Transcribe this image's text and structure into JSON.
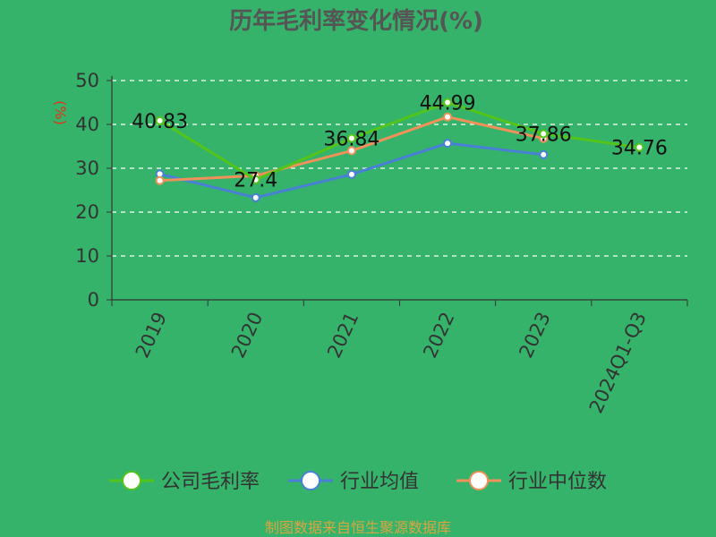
{
  "chart_data": {
    "type": "line",
    "title": "历年毛利率变化情况(%)",
    "ylabel": "(%)",
    "xlabel": "",
    "categories": [
      "2019",
      "2020",
      "2021",
      "2022",
      "2023",
      "2024Q1-Q3"
    ],
    "ylim": [
      0,
      50
    ],
    "yticks": [
      0,
      10,
      20,
      30,
      40,
      50
    ],
    "grid": true,
    "legend_position": "bottom",
    "series": [
      {
        "name": "公司毛利率",
        "color": "#52c41a",
        "values": [
          40.83,
          27.4,
          36.84,
          44.99,
          37.86,
          34.76
        ],
        "labels": [
          "40.83",
          "27.4",
          "36.84",
          "44.99",
          "37.86",
          "34.76"
        ]
      },
      {
        "name": "行业均值",
        "color": "#4a7fd6",
        "values": [
          28.7,
          23.3,
          28.6,
          35.7,
          33.1,
          null
        ]
      },
      {
        "name": "行业中位数",
        "color": "#f0915a",
        "values": [
          27.2,
          28.3,
          34.0,
          41.7,
          36.8,
          null
        ]
      }
    ]
  },
  "source_text": "制图数据来自恒生聚源数据库"
}
